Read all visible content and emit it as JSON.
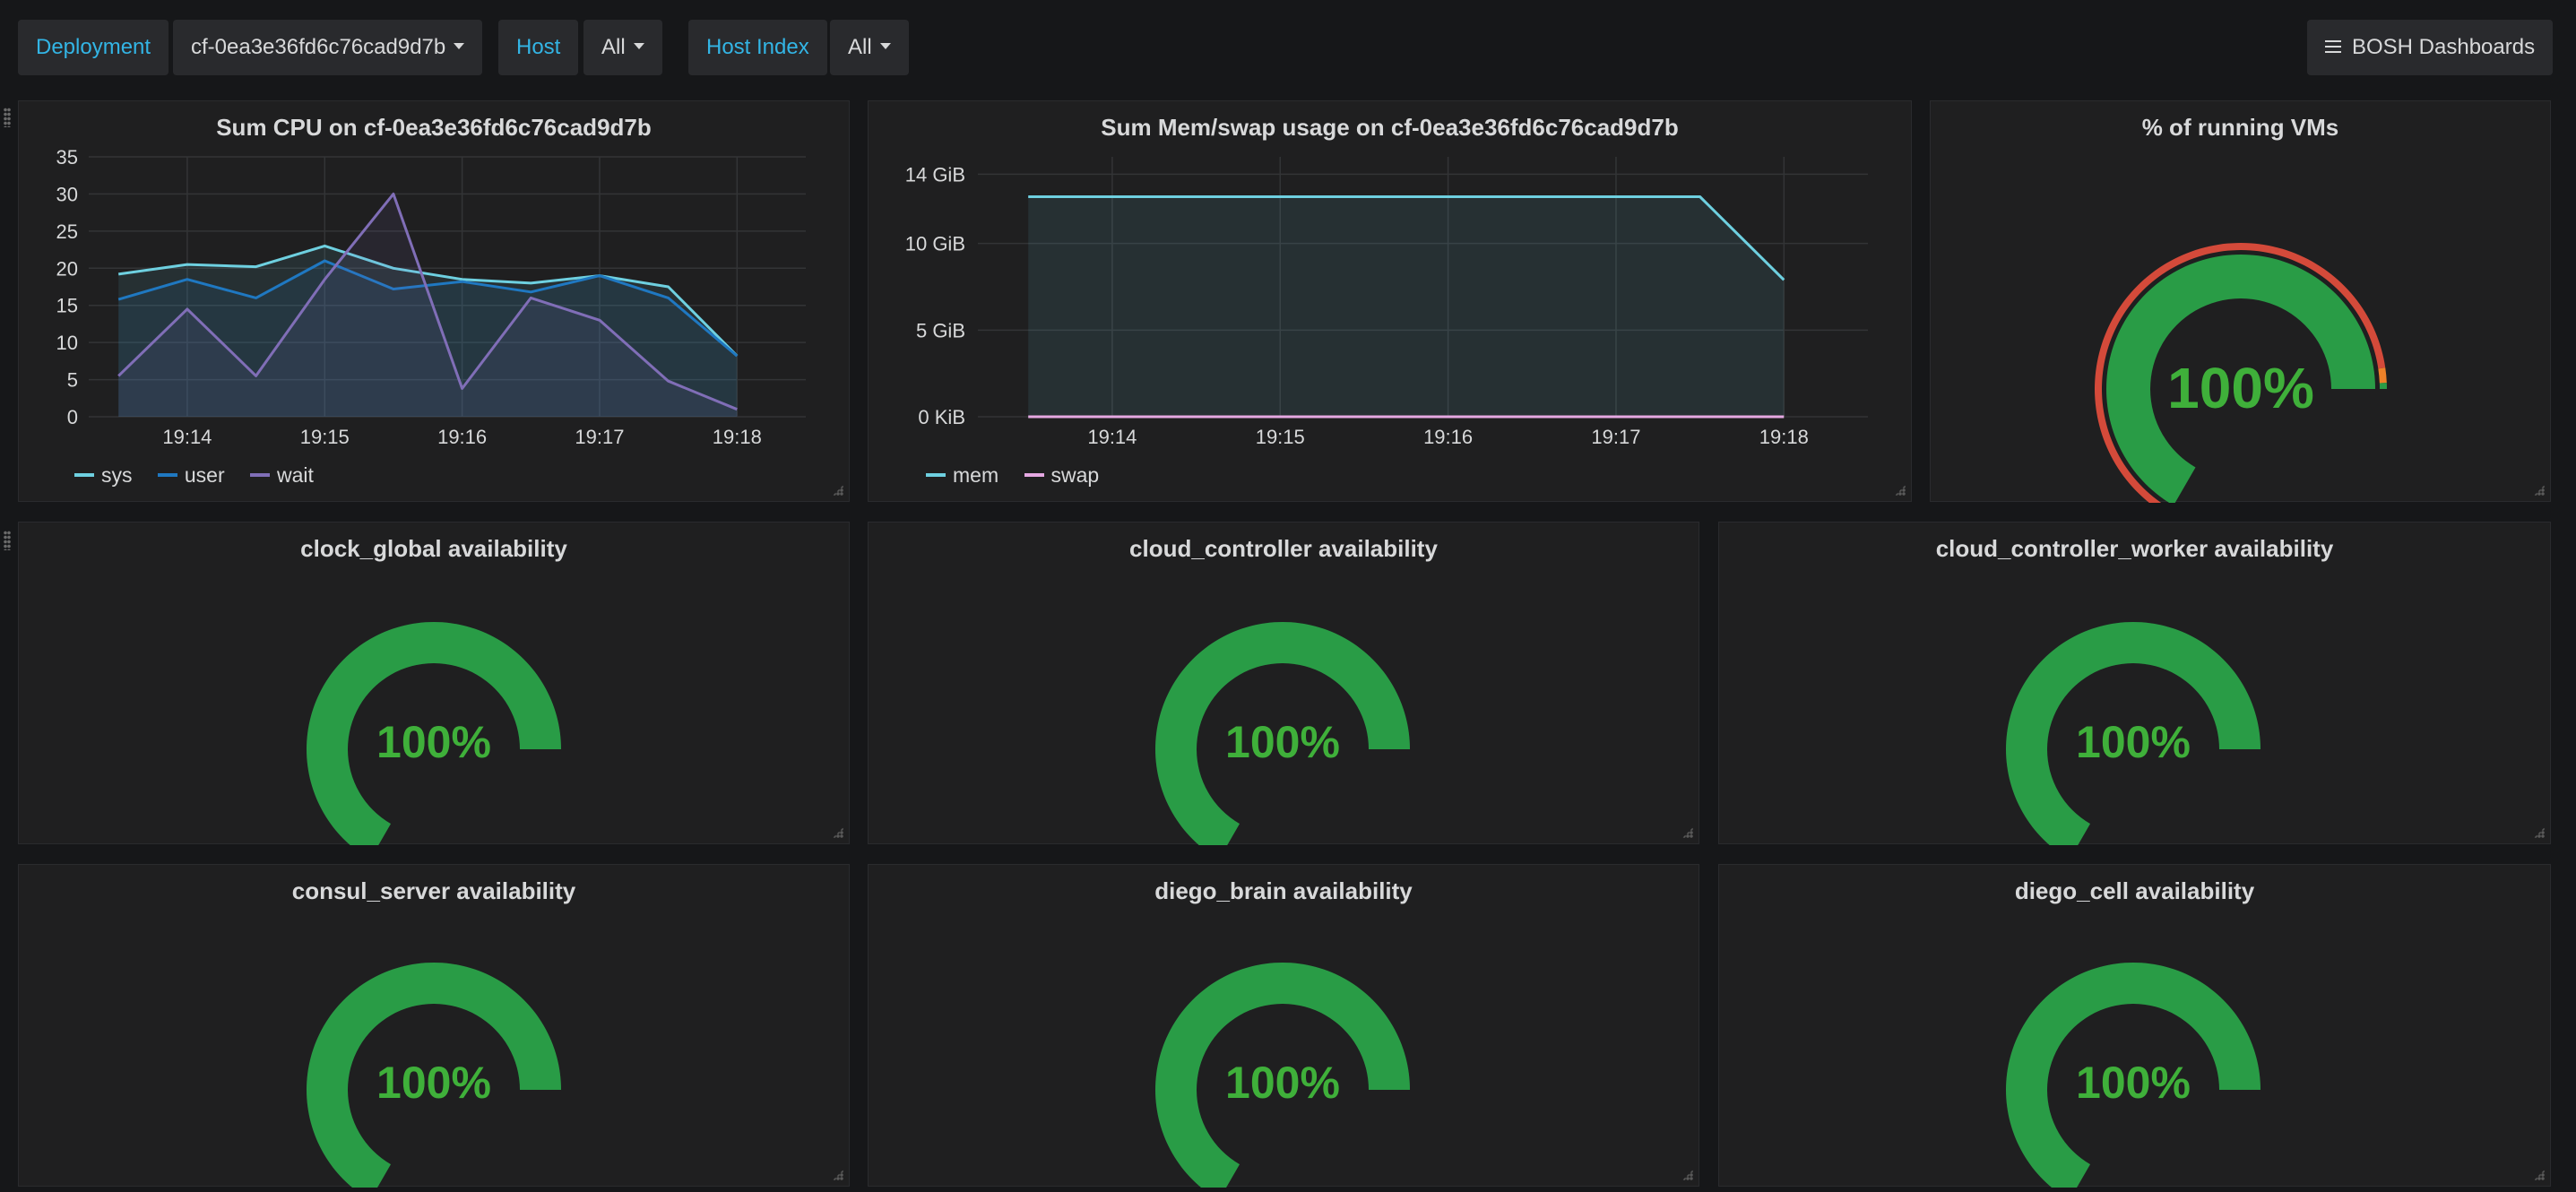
{
  "topbar": {
    "deployment_label": "Deployment",
    "deployment_value": "cf-0ea3e36fd6c76cad9d7b",
    "host_label": "Host",
    "host_value": "All",
    "host_index_label": "Host Index",
    "host_index_value": "All",
    "dashboards_button": "BOSH Dashboards"
  },
  "colors": {
    "sys": "#6ed0e0",
    "user": "#1f78c1",
    "wait": "#806eb7",
    "mem": "#6ed0e0",
    "swap": "#e5a8e2",
    "gauge_ok": "#299c46",
    "gauge_text": "#3fb03a",
    "threshold_red": "#d44a3a",
    "threshold_orange": "#ed8128"
  },
  "cpu_panel": {
    "title": "Sum CPU on cf-0ea3e36fd6c76cad9d7b",
    "chart_data": {
      "type": "line",
      "title": "Sum CPU on cf-0ea3e36fd6c76cad9d7b",
      "xlabel": "",
      "ylabel": "",
      "x": [
        "19:13:30",
        "19:14:00",
        "19:14:30",
        "19:15:00",
        "19:15:30",
        "19:16:00",
        "19:16:30",
        "19:17:00",
        "19:17:30",
        "19:18:00"
      ],
      "x_ticks": [
        "19:14",
        "19:15",
        "19:16",
        "19:17",
        "19:18"
      ],
      "y_ticks": [
        "0",
        "5",
        "10",
        "15",
        "20",
        "25",
        "30",
        "35"
      ],
      "ylim": [
        0,
        35
      ],
      "grid": true,
      "legend": "bottom-left",
      "series": [
        {
          "name": "sys",
          "values": [
            19.2,
            20.5,
            20.2,
            23.0,
            20.0,
            18.5,
            18.0,
            19.0,
            17.5,
            8.2
          ]
        },
        {
          "name": "user",
          "values": [
            15.8,
            18.5,
            16.0,
            21.0,
            17.2,
            18.2,
            16.8,
            19.0,
            16.0,
            8.2
          ]
        },
        {
          "name": "wait",
          "values": [
            5.5,
            14.5,
            5.5,
            18.5,
            30.0,
            3.8,
            16.0,
            13.0,
            4.8,
            1.0
          ]
        }
      ]
    }
  },
  "mem_panel": {
    "title": "Sum Mem/swap usage on cf-0ea3e36fd6c76cad9d7b",
    "chart_data": {
      "type": "area",
      "title": "Sum Mem/swap usage on cf-0ea3e36fd6c76cad9d7b",
      "xlabel": "",
      "ylabel": "",
      "x": [
        "19:13:30",
        "19:17:30",
        "19:18:00"
      ],
      "x_ticks": [
        "19:14",
        "19:15",
        "19:16",
        "19:17",
        "19:18"
      ],
      "y_ticks": [
        "0 KiB",
        "5 GiB",
        "10 GiB",
        "14 GiB"
      ],
      "y_units": "GiB",
      "ylim": [
        0,
        15
      ],
      "grid": true,
      "legend": "bottom-left",
      "series": [
        {
          "name": "mem",
          "values": [
            12.7,
            12.7,
            7.9
          ]
        },
        {
          "name": "swap",
          "values": [
            0,
            0,
            0
          ]
        }
      ]
    }
  },
  "gauges": [
    {
      "title": "% of running VMs",
      "value": "100%",
      "fraction": 1.0,
      "thresholds": true
    },
    {
      "title": "clock_global availability",
      "value": "100%",
      "fraction": 1.0,
      "thresholds": false
    },
    {
      "title": "cloud_controller availability",
      "value": "100%",
      "fraction": 1.0,
      "thresholds": false
    },
    {
      "title": "cloud_controller_worker availability",
      "value": "100%",
      "fraction": 1.0,
      "thresholds": false
    },
    {
      "title": "consul_server availability",
      "value": "100%",
      "fraction": 1.0,
      "thresholds": false
    },
    {
      "title": "diego_brain availability",
      "value": "100%",
      "fraction": 1.0,
      "thresholds": false
    },
    {
      "title": "diego_cell availability",
      "value": "100%",
      "fraction": 1.0,
      "thresholds": false
    }
  ]
}
